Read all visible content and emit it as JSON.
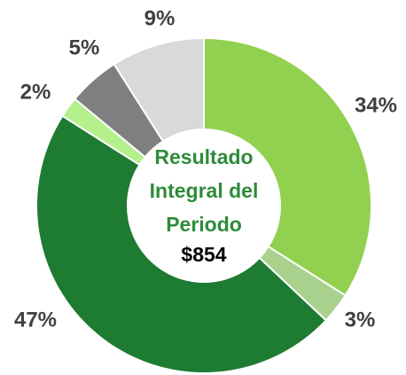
{
  "chart_data": {
    "type": "donut",
    "center_lines": [
      "Resultado",
      "Integral del",
      "Periodo"
    ],
    "total": "$854",
    "values": [
      34,
      3,
      47,
      2,
      5,
      9
    ],
    "value_labels": [
      "34%",
      "3%",
      "47%",
      "2%",
      "5%",
      "9%"
    ],
    "colors": [
      "#92d050",
      "#a9d18e",
      "#1e7b32",
      "#b4f08c",
      "#7f7f7f",
      "#d9d9d9"
    ]
  }
}
